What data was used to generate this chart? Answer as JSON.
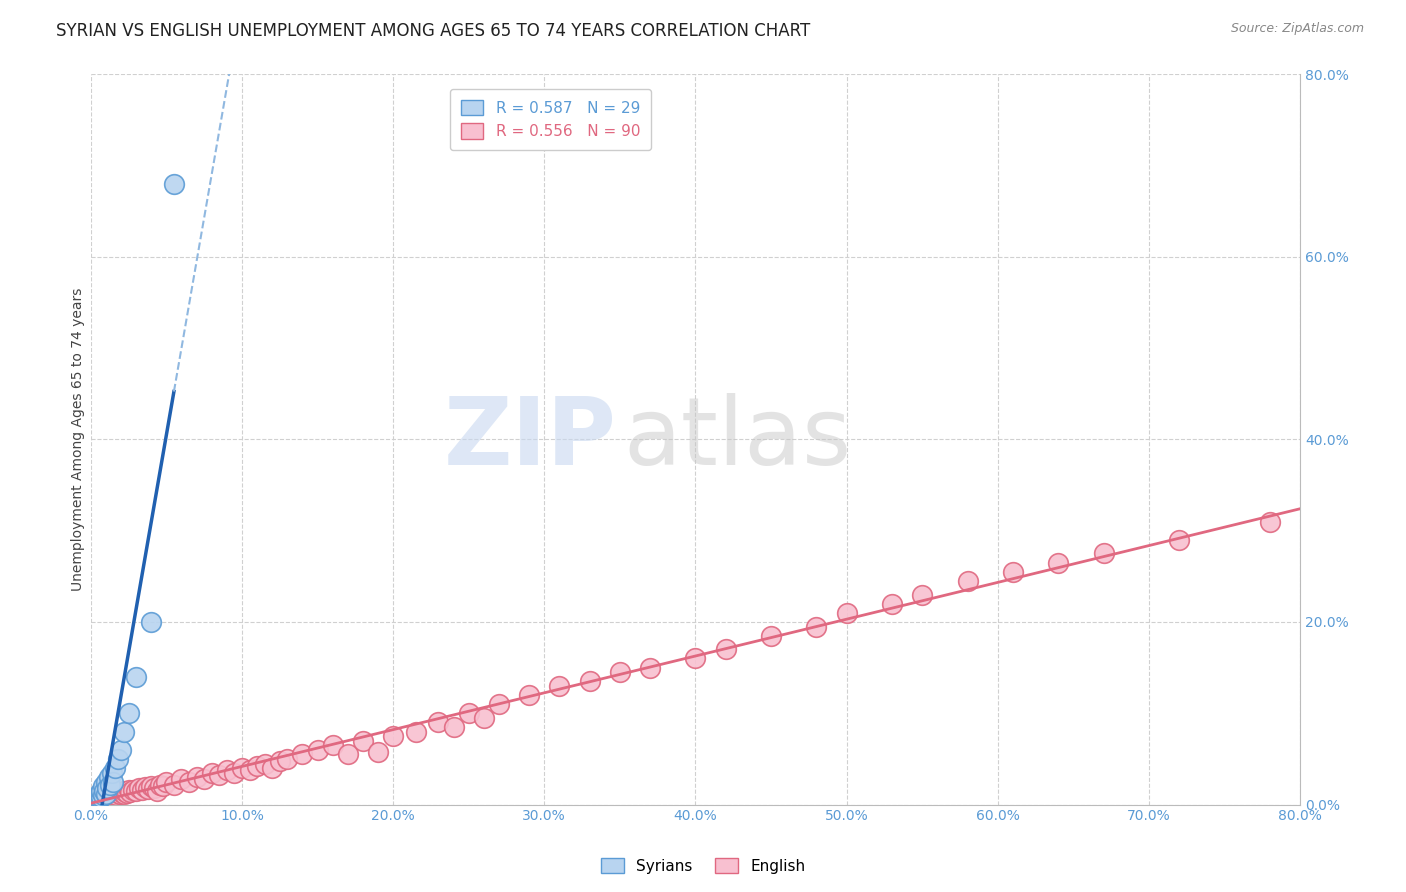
{
  "title": "SYRIAN VS ENGLISH UNEMPLOYMENT AMONG AGES 65 TO 74 YEARS CORRELATION CHART",
  "source": "Source: ZipAtlas.com",
  "ylabel": "Unemployment Among Ages 65 to 74 years",
  "xlim": [
    0.0,
    0.8
  ],
  "ylim": [
    0.0,
    0.8
  ],
  "xticks": [
    0.0,
    0.1,
    0.2,
    0.3,
    0.4,
    0.5,
    0.6,
    0.7,
    0.8
  ],
  "yticks": [
    0.0,
    0.2,
    0.4,
    0.6,
    0.8
  ],
  "background_color": "#ffffff",
  "grid_color": "#d0d0d0",
  "syrians_color": "#b8d4f0",
  "syrians_edge_color": "#5b9bd5",
  "english_color": "#f8c0d0",
  "english_edge_color": "#e06880",
  "syrian_R": 0.587,
  "syrian_N": 29,
  "english_R": 0.556,
  "english_N": 90,
  "syrian_line_color": "#2060b0",
  "english_line_color": "#e06880",
  "syrian_dash_color": "#90b8e0",
  "syrians_x": [
    0.002,
    0.003,
    0.004,
    0.004,
    0.005,
    0.005,
    0.005,
    0.006,
    0.006,
    0.007,
    0.007,
    0.008,
    0.008,
    0.009,
    0.01,
    0.01,
    0.011,
    0.012,
    0.013,
    0.014,
    0.015,
    0.016,
    0.018,
    0.02,
    0.022,
    0.025,
    0.03,
    0.04,
    0.055
  ],
  "syrians_y": [
    0.005,
    0.005,
    0.004,
    0.007,
    0.006,
    0.008,
    0.01,
    0.007,
    0.012,
    0.008,
    0.015,
    0.01,
    0.02,
    0.015,
    0.012,
    0.025,
    0.018,
    0.03,
    0.022,
    0.035,
    0.025,
    0.04,
    0.05,
    0.06,
    0.08,
    0.1,
    0.14,
    0.2,
    0.68
  ],
  "english_x": [
    0.001,
    0.002,
    0.003,
    0.004,
    0.004,
    0.005,
    0.005,
    0.006,
    0.006,
    0.007,
    0.007,
    0.008,
    0.008,
    0.009,
    0.01,
    0.01,
    0.011,
    0.012,
    0.013,
    0.014,
    0.015,
    0.016,
    0.017,
    0.018,
    0.019,
    0.02,
    0.022,
    0.022,
    0.024,
    0.025,
    0.026,
    0.028,
    0.03,
    0.032,
    0.034,
    0.036,
    0.038,
    0.04,
    0.042,
    0.044,
    0.046,
    0.048,
    0.05,
    0.055,
    0.06,
    0.065,
    0.07,
    0.075,
    0.08,
    0.085,
    0.09,
    0.095,
    0.1,
    0.105,
    0.11,
    0.115,
    0.12,
    0.125,
    0.13,
    0.14,
    0.15,
    0.16,
    0.17,
    0.18,
    0.19,
    0.2,
    0.215,
    0.23,
    0.24,
    0.25,
    0.26,
    0.27,
    0.29,
    0.31,
    0.33,
    0.35,
    0.37,
    0.4,
    0.42,
    0.45,
    0.48,
    0.5,
    0.53,
    0.55,
    0.58,
    0.61,
    0.64,
    0.67,
    0.72,
    0.78
  ],
  "english_y": [
    0.002,
    0.003,
    0.003,
    0.004,
    0.005,
    0.004,
    0.006,
    0.005,
    0.007,
    0.005,
    0.008,
    0.006,
    0.009,
    0.007,
    0.008,
    0.01,
    0.008,
    0.01,
    0.009,
    0.012,
    0.01,
    0.012,
    0.011,
    0.013,
    0.012,
    0.014,
    0.012,
    0.015,
    0.013,
    0.016,
    0.014,
    0.016,
    0.015,
    0.018,
    0.016,
    0.019,
    0.017,
    0.02,
    0.018,
    0.015,
    0.022,
    0.02,
    0.025,
    0.022,
    0.028,
    0.025,
    0.03,
    0.028,
    0.035,
    0.032,
    0.038,
    0.035,
    0.04,
    0.038,
    0.042,
    0.045,
    0.04,
    0.048,
    0.05,
    0.055,
    0.06,
    0.065,
    0.055,
    0.07,
    0.058,
    0.075,
    0.08,
    0.09,
    0.085,
    0.1,
    0.095,
    0.11,
    0.12,
    0.13,
    0.135,
    0.145,
    0.15,
    0.16,
    0.17,
    0.185,
    0.195,
    0.21,
    0.22,
    0.23,
    0.245,
    0.255,
    0.265,
    0.275,
    0.29,
    0.31
  ],
  "watermark_zip": "ZIP",
  "watermark_atlas": "atlas",
  "title_fontsize": 12,
  "axis_label_fontsize": 10,
  "tick_fontsize": 10,
  "legend_fontsize": 11
}
